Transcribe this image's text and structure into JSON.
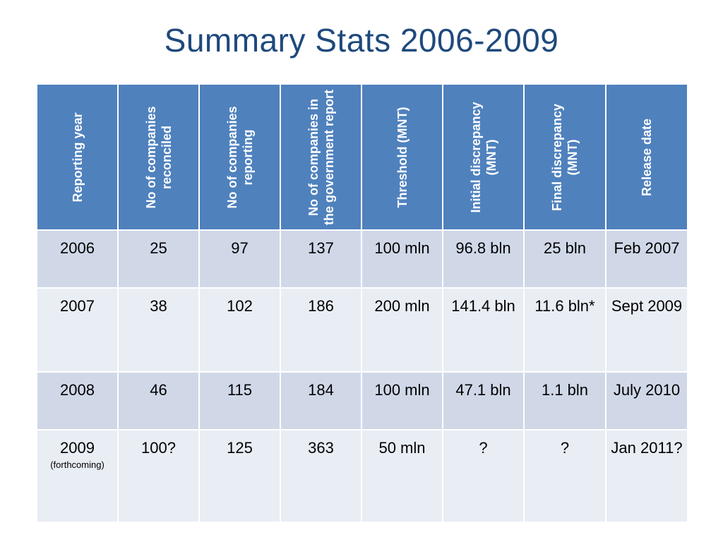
{
  "slide": {
    "title": "Summary Stats 2006-2009"
  },
  "table": {
    "headers": [
      "Reporting year",
      "No of companies reconciled",
      "No of companies reporting",
      "No of companies in the government report",
      "Threshold (MNT)",
      "Initial discrepancy (MNT)",
      "Final discrepancy (MNT)",
      "Release date"
    ],
    "rows": [
      {
        "year": "2006",
        "year_note": "",
        "reconciled": "25",
        "reporting": "97",
        "gov_report": "137",
        "threshold": "100 mln",
        "initial": "96.8 bln",
        "final": "25 bln",
        "release": "Feb 2007"
      },
      {
        "year": "2007",
        "year_note": "",
        "reconciled": "38",
        "reporting": "102",
        "gov_report": "186",
        "threshold": "200 mln",
        "initial": "141.4 bln",
        "final": "11.6 bln*",
        "release": "Sept 2009"
      },
      {
        "year": "2008",
        "year_note": "",
        "reconciled": "46",
        "reporting": "115",
        "gov_report": "184",
        "threshold": "100 mln",
        "initial": "47.1 bln",
        "final": "1.1 bln",
        "release": "July 2010"
      },
      {
        "year": "2009",
        "year_note": "(forthcoming)",
        "reconciled": "100?",
        "reporting": "125",
        "gov_report": "363",
        "threshold": "50 mln",
        "initial": "?",
        "final": "?",
        "release": "Jan 2011?"
      }
    ]
  },
  "colors": {
    "title": "#1F497D",
    "header_bg": "#4F81BD",
    "row_odd_bg": "#D0D8E8",
    "row_even_bg": "#E9EDF4"
  }
}
